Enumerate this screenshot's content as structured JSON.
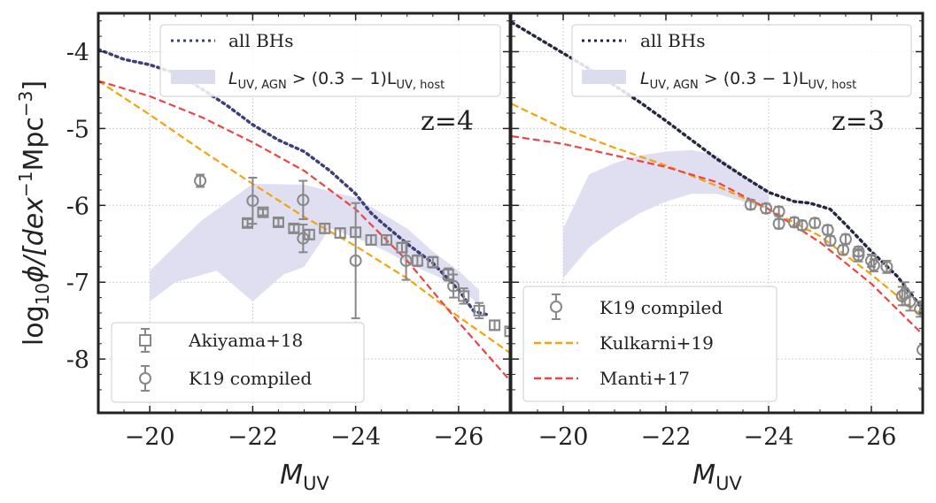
{
  "chart_data": [
    {
      "type": "line",
      "panel": "left",
      "annotation": "z=4",
      "xlabel": "M_UV",
      "ylabel": "log10 phi/[dex^-1 Mpc^-3]",
      "xlim": [
        -19,
        -27
      ],
      "ylim": [
        -8.7,
        -3.5
      ],
      "xticks": [
        -20,
        -22,
        -24,
        -26
      ],
      "xtick_labels": [
        "−20",
        "−22",
        "−24",
        "−26"
      ],
      "yticks": [
        -4,
        -5,
        -6,
        -7,
        -8
      ],
      "ytick_labels": [
        "-4",
        "-5",
        "-6",
        "-7",
        "-8"
      ],
      "grid": true,
      "series": [
        {
          "name": "all BHs",
          "style": "dotted",
          "color": "#3d3f7a",
          "x": [
            -19,
            -19.5,
            -20,
            -20.5,
            -21,
            -21.5,
            -22,
            -22.5,
            -23,
            -23.5,
            -24,
            -24.3,
            -24.5,
            -25,
            -25.5,
            -26,
            -26.3,
            -26.6
          ],
          "y": [
            -3.97,
            -4.1,
            -4.17,
            -4.28,
            -4.48,
            -4.7,
            -4.95,
            -5.15,
            -5.3,
            -5.55,
            -5.85,
            -6.1,
            -6.22,
            -6.5,
            -6.75,
            -7.1,
            -7.38,
            -7.43
          ]
        },
        {
          "name": "Kulkarni+19",
          "style": "dashed",
          "color": "#f5a20b",
          "x": [
            -19,
            -20,
            -21,
            -22,
            -23,
            -24,
            -25,
            -26,
            -27
          ],
          "y": [
            -4.38,
            -4.82,
            -5.28,
            -5.72,
            -6.15,
            -6.53,
            -6.95,
            -7.45,
            -7.92
          ]
        },
        {
          "name": "Manti+17",
          "style": "dashed",
          "color": "#ef4444",
          "x": [
            -19,
            -20,
            -21,
            -22,
            -23,
            -24,
            -25,
            -26,
            -27
          ],
          "y": [
            -4.38,
            -4.58,
            -4.85,
            -5.18,
            -5.55,
            -6.05,
            -6.72,
            -7.52,
            -8.28
          ]
        }
      ],
      "band": {
        "name": "L_UV,AGN > (0.3-1) L_UV,host",
        "color": "#dcdcef",
        "x_upper": [
          -20,
          -21,
          -22,
          -23,
          -24,
          -25,
          -25.5,
          -26,
          -26.4
        ],
        "y_upper": [
          -6.85,
          -6.2,
          -5.72,
          -5.73,
          -5.9,
          -6.3,
          -6.6,
          -6.85,
          -7.1
        ],
        "x_lower": [
          -26.4,
          -26,
          -25,
          -24.6,
          -24,
          -23.5,
          -23,
          -22.6,
          -22,
          -21.3,
          -20.5,
          -20
        ],
        "y_lower": [
          -7.3,
          -7.05,
          -6.75,
          -6.6,
          -6.42,
          -6.3,
          -6.8,
          -6.9,
          -7.25,
          -6.85,
          -7.0,
          -7.25
        ]
      },
      "errorbar_series": [
        {
          "name": "Akiyama+18",
          "marker": "square",
          "color": "#888888",
          "x": [
            -21.9,
            -22.2,
            -22.5,
            -22.8,
            -23.1,
            -23.4,
            -23.7,
            -24.0,
            -24.3,
            -24.6,
            -24.9,
            -25.2,
            -25.5,
            -25.8,
            -26.1,
            -26.4,
            -26.7,
            -27.0
          ],
          "y": [
            -6.23,
            -6.09,
            -6.22,
            -6.3,
            -6.38,
            -6.3,
            -6.36,
            -6.35,
            -6.45,
            -6.45,
            -6.55,
            -6.72,
            -6.74,
            -6.9,
            -7.18,
            -7.37,
            -7.56,
            -7.64
          ],
          "yerr": [
            0.05,
            0.04,
            0.05,
            0.05,
            0.06,
            0.06,
            0.06,
            0.06,
            0.06,
            0.06,
            0.06,
            0.07,
            0.07,
            0.08,
            0.1,
            0.1,
            0.06,
            0.06
          ]
        },
        {
          "name": "K19 compiled",
          "marker": "circle",
          "color": "#888888",
          "x": [
            -20.98,
            -22,
            -22.98,
            -22.98,
            -24,
            -24.98,
            -25.9
          ],
          "y": [
            -5.68,
            -5.94,
            -5.93,
            -6.43,
            -6.72,
            -6.72,
            -7.05
          ],
          "yerr": [
            0.08,
            0.3,
            0.25,
            0.18,
            0.75,
            0.25,
            0.15
          ]
        }
      ],
      "legends": [
        {
          "position": "top-right",
          "entries": [
            "all BHs",
            "L_UV,AGN > (0.3-1) L_UV,host"
          ]
        },
        {
          "position": "bottom-left",
          "entries": [
            "Akiyama+18",
            "K19 compiled"
          ]
        }
      ]
    },
    {
      "type": "line",
      "panel": "right",
      "annotation": "z=3",
      "xlabel": "M_UV",
      "xlim": [
        -19,
        -27
      ],
      "ylim": [
        -8.7,
        -3.5
      ],
      "xticks": [
        -20,
        -22,
        -24,
        -26
      ],
      "xtick_labels": [
        "−20",
        "−22",
        "−24",
        "−26"
      ],
      "grid": true,
      "series": [
        {
          "name": "all BHs",
          "style": "dotted",
          "color": "#262840",
          "x": [
            -19,
            -19.5,
            -20,
            -20.5,
            -21,
            -21.5,
            -22,
            -22.5,
            -23,
            -23.5,
            -24,
            -24.5,
            -24.8,
            -25.2,
            -25.5,
            -26,
            -26.5,
            -27
          ],
          "y": [
            -3.62,
            -3.82,
            -4.02,
            -4.22,
            -4.44,
            -4.66,
            -4.9,
            -5.15,
            -5.4,
            -5.62,
            -5.83,
            -5.95,
            -5.97,
            -6.05,
            -6.25,
            -6.6,
            -6.92,
            -7.35
          ]
        },
        {
          "name": "Kulkarni+19",
          "style": "dashed",
          "color": "#f5a20b",
          "x": [
            -19,
            -20,
            -21,
            -22,
            -23,
            -24,
            -25,
            -26,
            -27
          ],
          "y": [
            -4.68,
            -5.0,
            -5.25,
            -5.48,
            -5.75,
            -6.05,
            -6.4,
            -6.9,
            -7.45
          ]
        },
        {
          "name": "Manti+17",
          "style": "dashed",
          "color": "#ef4444",
          "x": [
            -19,
            -20,
            -21,
            -22,
            -23,
            -24,
            -25,
            -26,
            -27
          ],
          "y": [
            -5.1,
            -5.2,
            -5.35,
            -5.5,
            -5.7,
            -6.05,
            -6.48,
            -7.02,
            -7.68
          ]
        }
      ],
      "band": {
        "name": "L_UV,AGN > (0.3-1) L_UV,host",
        "color": "#dcdcef",
        "x_upper": [
          -20,
          -20.5,
          -21,
          -21.5,
          -22,
          -22.5,
          -23,
          -23.5,
          -24
        ],
        "y_upper": [
          -6.3,
          -5.6,
          -5.45,
          -5.35,
          -5.3,
          -5.28,
          -5.35,
          -5.6,
          -5.8
        ],
        "x_lower": [
          -24,
          -23.5,
          -23,
          -22.5,
          -22,
          -21.5,
          -21,
          -20.5,
          -20
        ],
        "y_lower": [
          -6.05,
          -5.95,
          -5.85,
          -5.85,
          -5.95,
          -6.1,
          -6.3,
          -6.55,
          -6.95
        ]
      },
      "errorbar_series": [
        {
          "name": "K19 compiled",
          "marker": "circle",
          "color": "#888888",
          "x": [
            -23.65,
            -23.95,
            -24.2,
            -24.2,
            -24.5,
            -24.65,
            -24.9,
            -25.15,
            -25.2,
            -25.5,
            -25.45,
            -25.75,
            -25.75,
            -26.0,
            -26.05,
            -26.3,
            -26.65,
            -26.6,
            -26.75,
            -26.95,
            -27.0
          ],
          "y": [
            -5.99,
            -6.04,
            -6.08,
            -6.24,
            -6.22,
            -6.26,
            -6.23,
            -6.32,
            -6.46,
            -6.44,
            -6.58,
            -6.6,
            -6.65,
            -6.72,
            -6.78,
            -6.8,
            -7.15,
            -7.18,
            -7.25,
            -7.35,
            -7.88
          ],
          "yerr": [
            0.06,
            0.06,
            0.06,
            0.06,
            0.06,
            0.06,
            0.06,
            0.06,
            0.06,
            0.06,
            0.06,
            0.06,
            0.08,
            0.08,
            0.08,
            0.08,
            0.15,
            0.12,
            0.12,
            0.1,
            0.5
          ]
        }
      ],
      "legends": [
        {
          "position": "top-right",
          "entries": [
            "all BHs",
            "L_UV,AGN > (0.3-1) L_UV,host"
          ]
        },
        {
          "position": "bottom-left",
          "entries": [
            "K19 compiled",
            "Kulkarni+19",
            "Manti+17"
          ]
        }
      ]
    }
  ],
  "labels": {
    "left_legend_top_1": "all BHs",
    "left_legend_top_2_prefix": "L",
    "left_legend_top_2_sub1": "UV, AGN",
    "left_legend_top_2_mid": " > (0.3 − 1)L",
    "left_legend_top_2_sub2": "UV, host",
    "left_legend_bottom_1": "Akiyama+18",
    "left_legend_bottom_2": "K19 compiled",
    "right_legend_top_1": "all BHs",
    "right_legend_bottom_1": "K19 compiled",
    "right_legend_bottom_2": "Kulkarni+19",
    "right_legend_bottom_3": "Manti+17",
    "left_z": "z=4",
    "right_z": "z=3",
    "xlabel_main": "M",
    "xlabel_sub": "UV",
    "ylabel_main": "log",
    "ylabel_sub": "10",
    "ylabel_rest": "ϕ/[dex",
    "ylabel_sup1": "−1",
    "ylabel_mpc": "Mpc",
    "ylabel_sup2": "−3",
    "ylabel_close": "]"
  }
}
